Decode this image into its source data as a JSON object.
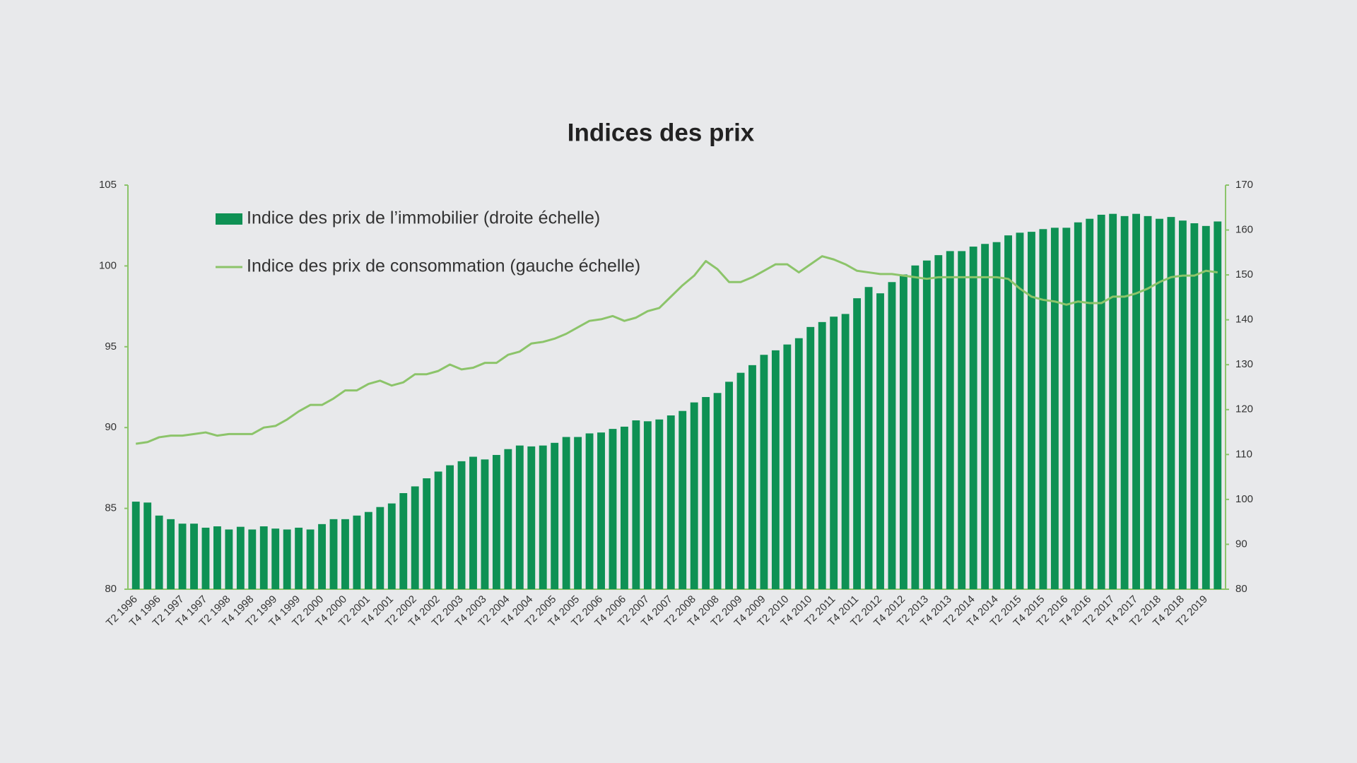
{
  "chart_data": {
    "type": "bar",
    "title": "Indices des prix",
    "categories": [
      "T2 1996",
      null,
      "T4 1996",
      null,
      "T2 1997",
      null,
      "T4 1997",
      null,
      "T2 1998",
      null,
      "T4 1998",
      null,
      "T2 1999",
      null,
      "T4 1999",
      null,
      "T2 2000",
      null,
      "T4 2000",
      null,
      "T2 2001",
      null,
      "T4 2001",
      null,
      "T2 2002",
      null,
      "T4 2002",
      null,
      "T2 2003",
      null,
      "T4 2003",
      null,
      "T2 2004",
      null,
      "T4 2004",
      null,
      "T2 2005",
      null,
      "T4 2005",
      null,
      "T2 2006",
      null,
      "T4 2006",
      null,
      "T2 2007",
      null,
      "T4 2007",
      null,
      "T2 2008",
      null,
      "T4 2008",
      null,
      "T2 2009",
      null,
      "T4 2009",
      null,
      "T2 2010",
      null,
      "T4 2010",
      null,
      "T2 2011",
      null,
      "T4 2011",
      null,
      "T2 2012",
      null,
      "T4 2012",
      null,
      "T2 2013",
      null,
      "T4 2013",
      null,
      "T2 2014",
      null,
      "T4 2014",
      null,
      "T2 2015",
      null,
      "T4 2015",
      null,
      "T2 2016",
      null,
      "T4 2016",
      null,
      "T2 2017",
      null,
      "T4 2017",
      null,
      "T2 2018",
      null,
      "T4 2018",
      null,
      "T2 2019",
      null
    ],
    "series": [
      {
        "name": "Indice des prix de l’immobilier (droite échelle)",
        "type": "bar",
        "axis": "y2",
        "color": "#0e9154",
        "values": [
          99.5,
          99.3,
          96.4,
          95.6,
          94.6,
          94.6,
          93.7,
          94.0,
          93.3,
          93.9,
          93.3,
          94.0,
          93.5,
          93.3,
          93.7,
          93.3,
          94.5,
          95.6,
          95.6,
          96.4,
          97.2,
          98.3,
          99.1,
          101.4,
          102.9,
          104.7,
          106.2,
          107.6,
          108.5,
          109.5,
          108.9,
          109.9,
          111.2,
          112.0,
          111.8,
          112.0,
          112.6,
          113.9,
          113.9,
          114.7,
          114.9,
          115.7,
          116.2,
          117.6,
          117.4,
          117.8,
          118.7,
          119.7,
          121.6,
          122.8,
          123.7,
          126.2,
          128.2,
          129.9,
          132.2,
          133.2,
          134.5,
          135.9,
          138.4,
          139.5,
          140.7,
          141.3,
          144.8,
          147.3,
          145.9,
          148.4,
          150.1,
          152.1,
          153.2,
          154.4,
          155.3,
          155.3,
          156.3,
          156.9,
          157.3,
          158.8,
          159.4,
          159.6,
          160.2,
          160.5,
          160.5,
          161.7,
          162.5,
          163.4,
          163.6,
          163.1,
          163.6,
          163.1,
          162.5,
          162.9,
          162.1,
          161.5,
          160.9,
          161.9
        ]
      },
      {
        "name": "Indice des prix de consommation (gauche échelle)",
        "type": "line",
        "axis": "y",
        "color": "#8cc46a",
        "values": [
          89.0,
          89.1,
          89.4,
          89.5,
          89.5,
          89.6,
          89.7,
          89.5,
          89.6,
          89.6,
          89.6,
          90.0,
          90.1,
          90.5,
          91.0,
          91.4,
          91.4,
          91.8,
          92.3,
          92.3,
          92.7,
          92.9,
          92.6,
          92.8,
          93.3,
          93.3,
          93.5,
          93.9,
          93.6,
          93.7,
          94.0,
          94.0,
          94.5,
          94.7,
          95.2,
          95.3,
          95.5,
          95.8,
          96.2,
          96.6,
          96.7,
          96.9,
          96.6,
          96.8,
          97.2,
          97.4,
          98.1,
          98.8,
          99.4,
          100.3,
          99.8,
          99.0,
          99.0,
          99.3,
          99.7,
          100.1,
          100.1,
          99.6,
          100.1,
          100.6,
          100.4,
          100.1,
          99.7,
          99.6,
          99.5,
          99.5,
          99.4,
          99.3,
          99.2,
          99.3,
          99.3,
          99.3,
          99.3,
          99.3,
          99.3,
          99.2,
          98.6,
          98.1,
          97.9,
          97.8,
          97.6,
          97.8,
          97.7,
          97.7,
          98.1,
          98.1,
          98.3,
          98.6,
          99.0,
          99.3,
          99.4,
          99.4,
          99.7,
          99.6
        ]
      }
    ],
    "ylim": [
      80,
      105
    ],
    "yticks": [
      80,
      85,
      90,
      95,
      100,
      105
    ],
    "y2lim": [
      80,
      170
    ],
    "y2ticks": [
      80,
      90,
      100,
      110,
      120,
      130,
      140,
      150,
      160,
      170
    ],
    "legend": "upper left",
    "grid": false
  }
}
